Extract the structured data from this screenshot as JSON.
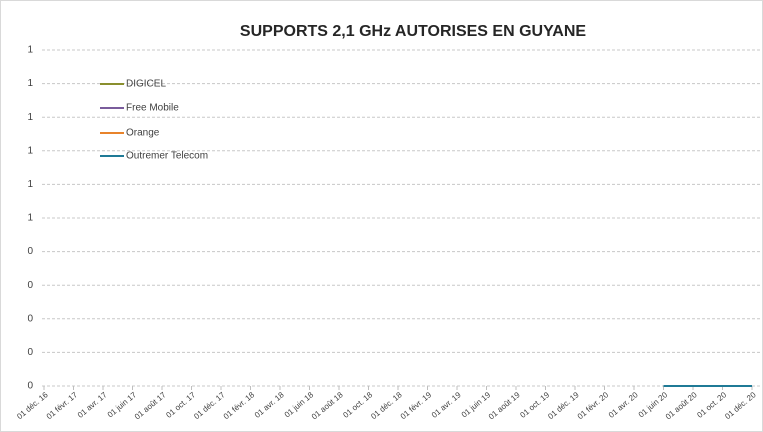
{
  "chart_data": {
    "type": "line",
    "title": "SUPPORTS 2,1 GHz AUTORISES EN GUYANE",
    "categories": [
      "01 déc. 16",
      "01 févr. 17",
      "01 avr. 17",
      "01 juin 17",
      "01 août 17",
      "01 oct. 17",
      "01 déc. 17",
      "01 févr. 18",
      "01 avr. 18",
      "01 juin 18",
      "01 août 18",
      "01 oct. 18",
      "01 déc. 18",
      "01 févr. 19",
      "01 avr. 19",
      "01 juin 19",
      "01 août 19",
      "01 oct. 19",
      "01 déc. 19",
      "01 févr. 20",
      "01 avr. 20",
      "01 juin 20",
      "01 août 20",
      "01 oct. 20",
      "01 déc. 20"
    ],
    "series": [
      {
        "name": "DIGICEL",
        "color": "#8a8f2e",
        "values": [
          null,
          null,
          null,
          null,
          null,
          null,
          null,
          null,
          null,
          null,
          null,
          null,
          null,
          null,
          null,
          null,
          null,
          null,
          null,
          null,
          null,
          0,
          0,
          0,
          0
        ]
      },
      {
        "name": "Free Mobile",
        "color": "#7a5c9c",
        "values": [
          null,
          null,
          null,
          null,
          null,
          null,
          null,
          null,
          null,
          null,
          null,
          null,
          null,
          null,
          null,
          null,
          null,
          null,
          null,
          null,
          null,
          0,
          0,
          0,
          0
        ]
      },
      {
        "name": "Orange",
        "color": "#e8832b",
        "values": [
          null,
          null,
          null,
          null,
          null,
          null,
          null,
          null,
          null,
          null,
          null,
          null,
          null,
          null,
          null,
          null,
          null,
          null,
          null,
          null,
          null,
          0,
          0,
          0,
          0
        ]
      },
      {
        "name": "Outremer Telecom",
        "color": "#1f7a96",
        "values": [
          null,
          null,
          null,
          null,
          null,
          null,
          null,
          null,
          null,
          null,
          null,
          null,
          null,
          null,
          null,
          null,
          null,
          null,
          null,
          null,
          null,
          0,
          0,
          0,
          0
        ]
      }
    ],
    "ylim": [
      0,
      1
    ],
    "yticks": [
      0,
      {
        "value": 0.1,
        "label": "0"
      },
      {
        "value": 0.2,
        "label": "0"
      },
      {
        "value": 0.3,
        "label": "0"
      },
      {
        "value": 0.4,
        "label": "0"
      },
      {
        "value": 0.5,
        "label": "1"
      },
      {
        "value": 0.6,
        "label": "1"
      },
      {
        "value": 0.7,
        "label": "1"
      },
      {
        "value": 0.8,
        "label": "1"
      },
      {
        "value": 0.9,
        "label": "1"
      },
      1
    ],
    "grid": true,
    "legend": "upper left"
  }
}
